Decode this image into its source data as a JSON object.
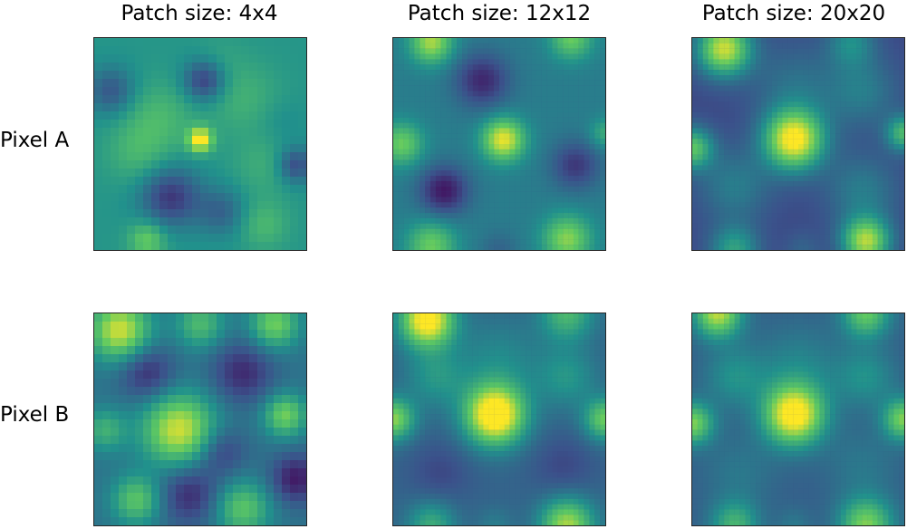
{
  "columns": [
    {
      "title": "Patch size: 4x4"
    },
    {
      "title": "Patch size: 12x12"
    },
    {
      "title": "Patch size: 20x20"
    }
  ],
  "rows": [
    {
      "label": "Pixel A"
    },
    {
      "label": "Pixel B"
    }
  ],
  "colormap": {
    "name": "viridis",
    "stops": [
      "#440154",
      "#3b528b",
      "#21918c",
      "#5ec962",
      "#fde725"
    ]
  }
}
